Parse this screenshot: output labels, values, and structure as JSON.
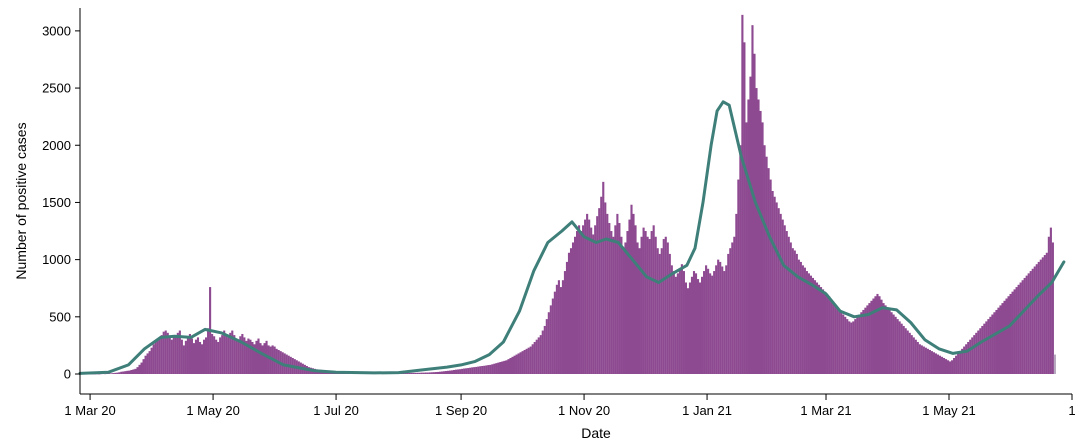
{
  "chart_data": {
    "type": "bar",
    "xlabel": "Date",
    "ylabel": "Number of positive cases",
    "x_range": [
      "2020-02-25",
      "2021-07-01"
    ],
    "ylim": [
      0,
      3200
    ],
    "y_ticks": [
      0,
      500,
      1000,
      1500,
      2000,
      2500,
      3000
    ],
    "x_ticks": [
      {
        "date": "2020-03-01",
        "label": "1 Mar 20"
      },
      {
        "date": "2020-05-01",
        "label": "1 May 20"
      },
      {
        "date": "2020-07-01",
        "label": "1 Jul 20"
      },
      {
        "date": "2020-09-01",
        "label": "1 Sep 20"
      },
      {
        "date": "2020-11-01",
        "label": "1 Nov 20"
      },
      {
        "date": "2021-01-01",
        "label": "1 Jan 21"
      },
      {
        "date": "2021-03-01",
        "label": "1 Mar 21"
      },
      {
        "date": "2021-05-01",
        "label": "1 May 21"
      },
      {
        "date": "2021-07-01",
        "label": "1"
      }
    ],
    "grid": false,
    "legend": "none",
    "bar_color": "#8e4a91",
    "incomplete_bar_color": "#b7a7bf",
    "line_color": "#3f7f7a",
    "series": [
      {
        "kind": "bar",
        "start_date": "2020-02-29",
        "values": [
          0,
          1,
          1,
          1,
          2,
          1,
          3,
          4,
          3,
          5,
          5,
          6,
          8,
          10,
          12,
          15,
          20,
          22,
          25,
          28,
          30,
          35,
          40,
          45,
          60,
          80,
          100,
          130,
          160,
          180,
          200,
          230,
          260,
          280,
          300,
          320,
          340,
          370,
          380,
          360,
          330,
          300,
          320,
          340,
          360,
          380,
          300,
          250,
          290,
          330,
          350,
          310,
          270,
          300,
          320,
          280,
          260,
          300,
          320,
          400,
          760,
          350,
          330,
          300,
          280,
          320,
          340,
          380,
          350,
          320,
          360,
          380,
          340,
          300,
          290,
          330,
          350,
          320,
          290,
          310,
          300,
          280,
          260,
          290,
          310,
          270,
          250,
          270,
          290,
          250,
          240,
          250,
          240,
          220,
          210,
          200,
          190,
          180,
          170,
          160,
          150,
          140,
          130,
          120,
          110,
          100,
          90,
          80,
          70,
          60,
          55,
          50,
          45,
          40,
          38,
          36,
          34,
          32,
          30,
          28,
          26,
          25,
          24,
          23,
          22,
          21,
          20,
          20,
          19,
          19,
          18,
          18,
          17,
          17,
          16,
          16,
          15,
          15,
          14,
          14,
          14,
          13,
          13,
          12,
          12,
          12,
          11,
          11,
          11,
          10,
          10,
          10,
          10,
          10,
          10,
          10,
          10,
          10,
          10,
          10,
          10,
          10,
          10,
          11,
          11,
          12,
          12,
          13,
          13,
          14,
          15,
          16,
          17,
          18,
          20,
          22,
          24,
          26,
          28,
          30,
          32,
          35,
          38,
          40,
          42,
          45,
          48,
          50,
          52,
          55,
          58,
          60,
          62,
          65,
          68,
          70,
          72,
          75,
          78,
          80,
          85,
          90,
          95,
          100,
          105,
          110,
          115,
          120,
          130,
          140,
          150,
          160,
          170,
          180,
          190,
          200,
          210,
          220,
          230,
          240,
          260,
          280,
          300,
          320,
          340,
          380,
          420,
          480,
          540,
          600,
          660,
          720,
          780,
          820,
          760,
          820,
          900,
          980,
          1060,
          1100,
          1150,
          1200,
          1250,
          1300,
          1250,
          1300,
          1350,
          1400,
          1350,
          1280,
          1220,
          1300,
          1380,
          1450,
          1550,
          1680,
          1500,
          1400,
          1320,
          1250,
          1200,
          1300,
          1400,
          1320,
          1200,
          1100,
          1150,
          1250,
          1350,
          1480,
          1400,
          1300,
          1150,
          1100,
          1200,
          1280,
          1250,
          1200,
          1180,
          1250,
          1300,
          1200,
          1100,
          1050,
          1100,
          1180,
          1200,
          1150,
          1050,
          950,
          900,
          850,
          880,
          920,
          960,
          900,
          800,
          750,
          800,
          850,
          900,
          880,
          830,
          800,
          850,
          900,
          950,
          920,
          880,
          860,
          900,
          950,
          1000,
          980,
          940,
          900,
          950,
          1050,
          1100,
          1150,
          1200,
          1400,
          1700,
          2000,
          3140,
          2900,
          2200,
          2400,
          2600,
          3050,
          2800,
          2500,
          2400,
          2300,
          2200,
          2000,
          1900,
          1800,
          1700,
          1600,
          1550,
          1500,
          1450,
          1400,
          1350,
          1300,
          1250,
          1200,
          1150,
          1100,
          1080,
          1050,
          1000,
          980,
          950,
          930,
          900,
          880,
          860,
          840,
          820,
          800,
          780,
          760,
          740,
          720,
          700,
          680,
          650,
          620,
          600,
          580,
          560,
          540,
          520,
          500,
          480,
          460,
          450,
          460,
          480,
          500,
          520,
          540,
          560,
          580,
          600,
          620,
          640,
          660,
          680,
          700,
          680,
          650,
          620,
          600,
          580,
          560,
          540,
          520,
          500,
          480,
          460,
          440,
          420,
          400,
          380,
          360,
          340,
          320,
          300,
          280,
          260,
          250,
          240,
          230,
          220,
          210,
          200,
          190,
          180,
          170,
          160,
          150,
          140,
          130,
          120,
          110,
          120,
          140,
          160,
          180,
          200,
          220,
          240,
          260,
          280,
          300,
          320,
          340,
          360,
          380,
          400,
          420,
          440,
          460,
          480,
          500,
          520,
          540,
          560,
          580,
          600,
          620,
          640,
          660,
          680,
          700,
          720,
          740,
          760,
          780,
          800,
          820,
          840,
          860,
          880,
          900,
          920,
          940,
          960,
          980,
          1000,
          1020,
          1040,
          1060,
          1200,
          1280,
          1150,
          170
        ]
      },
      {
        "kind": "line",
        "points": [
          [
            "2020-02-25",
            5
          ],
          [
            "2020-03-10",
            15
          ],
          [
            "2020-03-20",
            80
          ],
          [
            "2020-03-28",
            220
          ],
          [
            "2020-04-05",
            320
          ],
          [
            "2020-04-12",
            330
          ],
          [
            "2020-04-20",
            320
          ],
          [
            "2020-04-27",
            390
          ],
          [
            "2020-05-05",
            360
          ],
          [
            "2020-05-15",
            280
          ],
          [
            "2020-05-25",
            180
          ],
          [
            "2020-06-05",
            80
          ],
          [
            "2020-06-20",
            30
          ],
          [
            "2020-07-01",
            15
          ],
          [
            "2020-07-20",
            10
          ],
          [
            "2020-08-01",
            12
          ],
          [
            "2020-08-15",
            40
          ],
          [
            "2020-08-25",
            60
          ],
          [
            "2020-09-01",
            80
          ],
          [
            "2020-09-08",
            110
          ],
          [
            "2020-09-15",
            170
          ],
          [
            "2020-09-22",
            280
          ],
          [
            "2020-09-30",
            550
          ],
          [
            "2020-10-07",
            900
          ],
          [
            "2020-10-14",
            1150
          ],
          [
            "2020-10-21",
            1250
          ],
          [
            "2020-10-26",
            1330
          ],
          [
            "2020-11-01",
            1200
          ],
          [
            "2020-11-07",
            1150
          ],
          [
            "2020-11-12",
            1180
          ],
          [
            "2020-11-18",
            1150
          ],
          [
            "2020-11-25",
            1000
          ],
          [
            "2020-12-02",
            850
          ],
          [
            "2020-12-08",
            800
          ],
          [
            "2020-12-15",
            880
          ],
          [
            "2020-12-22",
            950
          ],
          [
            "2020-12-26",
            1100
          ],
          [
            "2020-12-30",
            1500
          ],
          [
            "2021-01-03",
            2000
          ],
          [
            "2021-01-06",
            2300
          ],
          [
            "2021-01-09",
            2380
          ],
          [
            "2021-01-12",
            2350
          ],
          [
            "2021-01-18",
            1900
          ],
          [
            "2021-01-25",
            1500
          ],
          [
            "2021-02-01",
            1200
          ],
          [
            "2021-02-08",
            950
          ],
          [
            "2021-02-15",
            850
          ],
          [
            "2021-02-22",
            780
          ],
          [
            "2021-03-01",
            700
          ],
          [
            "2021-03-08",
            550
          ],
          [
            "2021-03-15",
            500
          ],
          [
            "2021-03-22",
            520
          ],
          [
            "2021-03-29",
            580
          ],
          [
            "2021-04-05",
            560
          ],
          [
            "2021-04-12",
            450
          ],
          [
            "2021-04-19",
            300
          ],
          [
            "2021-04-26",
            220
          ],
          [
            "2021-05-03",
            180
          ],
          [
            "2021-05-10",
            200
          ],
          [
            "2021-05-17",
            280
          ],
          [
            "2021-05-24",
            350
          ],
          [
            "2021-05-31",
            420
          ],
          [
            "2021-06-07",
            550
          ],
          [
            "2021-06-14",
            680
          ],
          [
            "2021-06-21",
            800
          ],
          [
            "2021-06-27",
            980
          ]
        ]
      }
    ]
  }
}
